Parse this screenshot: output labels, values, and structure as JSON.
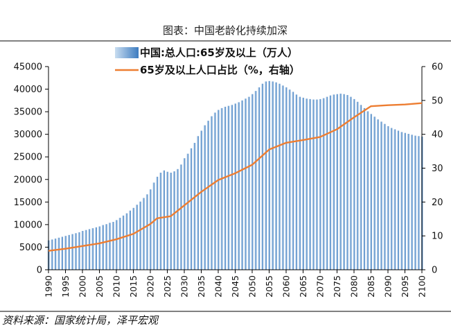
{
  "chart_data": {
    "type": "bar+line",
    "title": "图表：中国老龄化持续加深",
    "series": [
      {
        "name": "中国:总人口:65岁及以上（万人）",
        "type": "bar",
        "axis": "left",
        "x_start": 1990,
        "x_end": 2100,
        "values": [
          6500,
          6700,
          6900,
          7100,
          7300,
          7500,
          7700,
          7900,
          8100,
          8300,
          8600,
          8800,
          9000,
          9200,
          9400,
          9600,
          9900,
          10100,
          10400,
          10600,
          11000,
          11500,
          12000,
          12500,
          13100,
          13700,
          14400,
          15100,
          15900,
          16700,
          17800,
          19300,
          20600,
          21500,
          22000,
          21700,
          21500,
          21800,
          22300,
          23300,
          24700,
          25700,
          26900,
          28100,
          29600,
          30800,
          32000,
          33000,
          34000,
          34800,
          35400,
          35800,
          36100,
          36300,
          36500,
          36800,
          37100,
          37500,
          37900,
          38300,
          38900,
          39600,
          40400,
          41200,
          41700,
          41800,
          41700,
          41500,
          41200,
          40800,
          40400,
          39900,
          39400,
          38800,
          38300,
          38100,
          37900,
          37800,
          37700,
          37700,
          37800,
          38000,
          38300,
          38600,
          38800,
          38900,
          39000,
          38900,
          38700,
          38300,
          37800,
          37200,
          36500,
          35800,
          35100,
          34500,
          33900,
          33300,
          32800,
          32300,
          31800,
          31400,
          31100,
          30800,
          30500,
          30300,
          30100,
          29900,
          29700,
          29600,
          29500
        ]
      },
      {
        "name": "65岁及以上人口占比（%，右轴）",
        "type": "line",
        "axis": "right",
        "x": [
          1990,
          1995,
          2000,
          2005,
          2010,
          2015,
          2020,
          2022,
          2026,
          2030,
          2035,
          2040,
          2045,
          2050,
          2055,
          2060,
          2065,
          2070,
          2075,
          2080,
          2085,
          2090,
          2095,
          2100
        ],
        "values": [
          5.6,
          6.2,
          7.0,
          7.8,
          9.0,
          10.6,
          13.5,
          15.2,
          15.8,
          19.0,
          23.0,
          26.5,
          28.5,
          31.0,
          35.5,
          37.5,
          38.3,
          39.2,
          41.5,
          45.0,
          48.3,
          48.6,
          48.8,
          49.2
        ]
      }
    ],
    "y_left": {
      "min": 0,
      "max": 45000,
      "step": 5000
    },
    "y_right": {
      "min": 0,
      "max": 60,
      "step": 10
    },
    "x_ticks": [
      1990,
      1995,
      2000,
      2005,
      2010,
      2015,
      2020,
      2025,
      2030,
      2035,
      2040,
      2045,
      2050,
      2055,
      2060,
      2065,
      2070,
      2075,
      2080,
      2085,
      2090,
      2095,
      2100
    ],
    "colors": {
      "bar_light": "#c9ddf0",
      "bar_dark": "#3d7cc0",
      "line": "#ed7d31",
      "axis": "#000000"
    },
    "legend_position": "top-center",
    "source": "资料来源：国家统计局，泽平宏观"
  }
}
